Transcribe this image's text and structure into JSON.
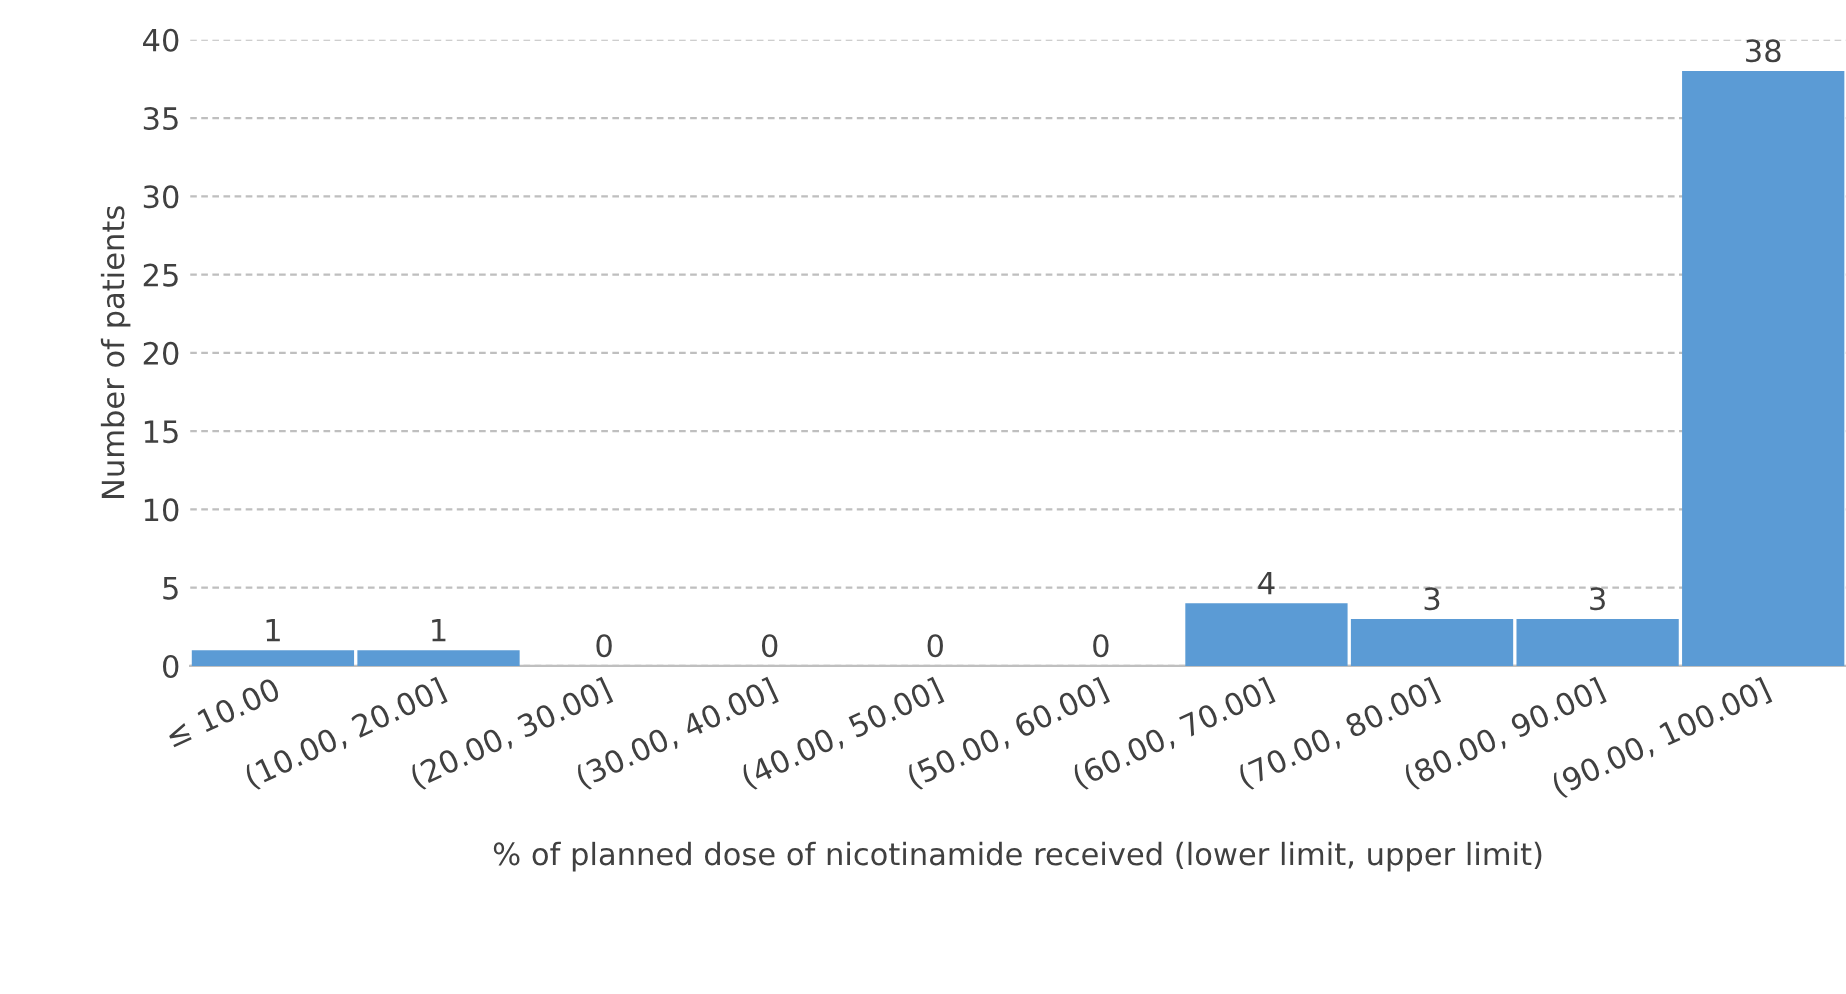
{
  "chart_data": {
    "type": "bar",
    "xlabel": "% of planned dose of nicotinamide received (lower limit, upper limit)",
    "ylabel": "Number of patients",
    "categories": [
      "≤ 10.00",
      "(10.00, 20.00]",
      "(20.00, 30.00]",
      "(30.00, 40.00]",
      "(40.00, 50.00]",
      "(50.00, 60.00]",
      "(60.00, 70.00]",
      "(70.00, 80.00]",
      "(80.00, 90.00]",
      "(90.00, 100.00]"
    ],
    "values": [
      1,
      1,
      0,
      0,
      0,
      0,
      4,
      3,
      3,
      38
    ],
    "color": "#5b9bd5",
    "ylim": [
      0,
      40
    ],
    "yticks": [
      0,
      5,
      10,
      15,
      20,
      25,
      30,
      35,
      40
    ],
    "grid": "y",
    "data_labels": true,
    "legend": false
  }
}
